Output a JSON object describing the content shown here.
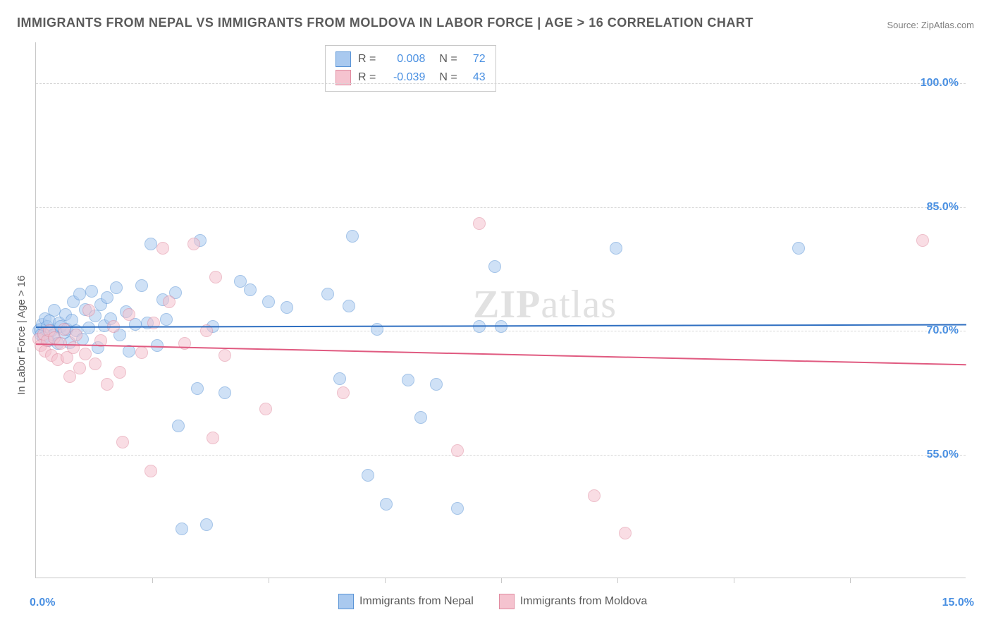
{
  "title": "IMMIGRANTS FROM NEPAL VS IMMIGRANTS FROM MOLDOVA IN LABOR FORCE | AGE > 16 CORRELATION CHART",
  "source": "Source: ZipAtlas.com",
  "watermark_zip": "ZIP",
  "watermark_atlas": "atlas",
  "y_axis_title": "In Labor Force | Age > 16",
  "x_min_label": "0.0%",
  "x_max_label": "15.0%",
  "chart": {
    "type": "scatter",
    "xlim": [
      0,
      15
    ],
    "ylim": [
      40,
      105
    ],
    "y_gridlines": [
      55,
      70,
      85,
      100
    ],
    "y_tick_labels": [
      "55.0%",
      "70.0%",
      "85.0%",
      "100.0%"
    ],
    "x_tick_positions": [
      1.875,
      3.75,
      5.625,
      7.5,
      9.375,
      11.25,
      13.125
    ],
    "marker_radius": 9,
    "marker_opacity": 0.55,
    "grid_color": "#d6d6d6",
    "background_color": "#ffffff",
    "axis_color": "#c8c8c8",
    "tick_label_color": "#4a90e2",
    "tick_label_fontsize": 16,
    "title_fontsize": 18,
    "title_color": "#5a5a5a"
  },
  "series": [
    {
      "name": "Immigrants from Nepal",
      "fill_color": "#a9c9ef",
      "stroke_color": "#5a94d6",
      "trend_color": "#2f6fc1",
      "trend_y_start": 70.5,
      "trend_y_end": 70.8,
      "R": "0.008",
      "N": "72",
      "points": [
        [
          0.05,
          70.0
        ],
        [
          0.07,
          70.2
        ],
        [
          0.08,
          69.5
        ],
        [
          0.1,
          70.8
        ],
        [
          0.12,
          69.2
        ],
        [
          0.15,
          71.5
        ],
        [
          0.18,
          70.5
        ],
        [
          0.2,
          68.8
        ],
        [
          0.22,
          71.2
        ],
        [
          0.25,
          70.0
        ],
        [
          0.28,
          69.5
        ],
        [
          0.3,
          72.5
        ],
        [
          0.35,
          68.5
        ],
        [
          0.38,
          71.0
        ],
        [
          0.4,
          70.5
        ],
        [
          0.45,
          69.8
        ],
        [
          0.48,
          72.0
        ],
        [
          0.5,
          70.2
        ],
        [
          0.55,
          68.6
        ],
        [
          0.58,
          71.3
        ],
        [
          0.6,
          73.5
        ],
        [
          0.65,
          70.0
        ],
        [
          0.7,
          74.5
        ],
        [
          0.75,
          69.0
        ],
        [
          0.8,
          72.6
        ],
        [
          0.85,
          70.4
        ],
        [
          0.9,
          74.8
        ],
        [
          0.95,
          71.8
        ],
        [
          1.0,
          68.0
        ],
        [
          1.05,
          73.2
        ],
        [
          1.1,
          70.6
        ],
        [
          1.15,
          74.0
        ],
        [
          1.2,
          71.5
        ],
        [
          1.3,
          75.2
        ],
        [
          1.35,
          69.5
        ],
        [
          1.45,
          72.3
        ],
        [
          1.5,
          67.5
        ],
        [
          1.6,
          70.8
        ],
        [
          1.7,
          75.5
        ],
        [
          1.8,
          71.0
        ],
        [
          1.85,
          80.5
        ],
        [
          1.95,
          68.2
        ],
        [
          2.05,
          73.8
        ],
        [
          2.1,
          71.4
        ],
        [
          2.25,
          74.6
        ],
        [
          2.3,
          58.5
        ],
        [
          2.35,
          46.0
        ],
        [
          2.6,
          63.0
        ],
        [
          2.65,
          81.0
        ],
        [
          2.75,
          46.5
        ],
        [
          2.85,
          70.5
        ],
        [
          3.05,
          62.5
        ],
        [
          3.3,
          76.0
        ],
        [
          3.45,
          75.0
        ],
        [
          3.75,
          73.5
        ],
        [
          4.05,
          72.8
        ],
        [
          4.7,
          74.5
        ],
        [
          4.9,
          64.2
        ],
        [
          5.05,
          73.0
        ],
        [
          5.1,
          81.5
        ],
        [
          5.35,
          52.5
        ],
        [
          5.5,
          70.2
        ],
        [
          5.65,
          49.0
        ],
        [
          6.0,
          64.0
        ],
        [
          6.2,
          59.5
        ],
        [
          6.45,
          63.5
        ],
        [
          6.8,
          48.5
        ],
        [
          7.15,
          70.5
        ],
        [
          7.4,
          77.8
        ],
        [
          7.5,
          70.5
        ],
        [
          9.35,
          80.0
        ],
        [
          12.3,
          80.0
        ]
      ]
    },
    {
      "name": "Immigrants from Moldova",
      "fill_color": "#f5c3cf",
      "stroke_color": "#e08ba0",
      "trend_color": "#e05a80",
      "trend_y_start": 68.5,
      "trend_y_end": 66.0,
      "R": "-0.039",
      "N": "43",
      "points": [
        [
          0.05,
          69.0
        ],
        [
          0.08,
          68.2
        ],
        [
          0.12,
          69.6
        ],
        [
          0.15,
          67.5
        ],
        [
          0.18,
          68.8
        ],
        [
          0.22,
          70.0
        ],
        [
          0.25,
          67.0
        ],
        [
          0.3,
          69.2
        ],
        [
          0.35,
          66.5
        ],
        [
          0.4,
          68.5
        ],
        [
          0.45,
          70.2
        ],
        [
          0.5,
          66.8
        ],
        [
          0.55,
          64.5
        ],
        [
          0.6,
          68.0
        ],
        [
          0.65,
          69.5
        ],
        [
          0.7,
          65.5
        ],
        [
          0.8,
          67.2
        ],
        [
          0.85,
          72.5
        ],
        [
          0.95,
          66.0
        ],
        [
          1.05,
          68.8
        ],
        [
          1.15,
          63.5
        ],
        [
          1.25,
          70.5
        ],
        [
          1.35,
          65.0
        ],
        [
          1.4,
          56.5
        ],
        [
          1.5,
          72.0
        ],
        [
          1.7,
          67.4
        ],
        [
          1.85,
          53.0
        ],
        [
          1.9,
          71.0
        ],
        [
          2.05,
          80.0
        ],
        [
          2.15,
          73.5
        ],
        [
          2.4,
          68.5
        ],
        [
          2.55,
          80.5
        ],
        [
          2.75,
          70.0
        ],
        [
          2.85,
          57.0
        ],
        [
          2.9,
          76.5
        ],
        [
          3.05,
          67.0
        ],
        [
          3.7,
          60.5
        ],
        [
          4.95,
          62.5
        ],
        [
          6.8,
          55.5
        ],
        [
          7.15,
          83.0
        ],
        [
          9.0,
          50.0
        ],
        [
          9.5,
          45.5
        ],
        [
          14.3,
          81.0
        ]
      ]
    }
  ],
  "stats_labels": {
    "R": "R =",
    "N": "N ="
  },
  "legend": {
    "series1_label": "Immigrants from Nepal",
    "series2_label": "Immigrants from Moldova"
  }
}
